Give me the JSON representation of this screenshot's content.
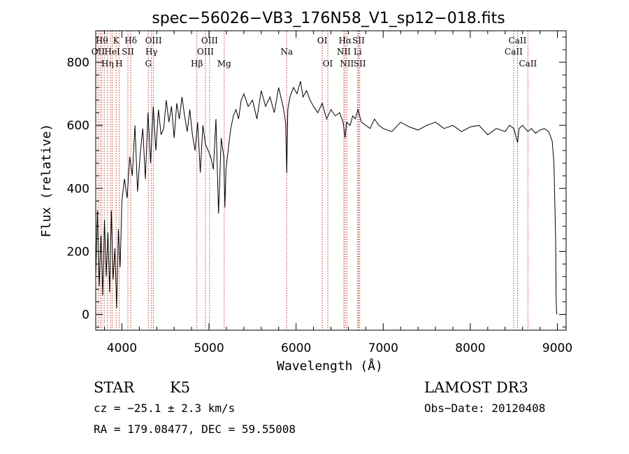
{
  "chart_data": {
    "type": "line",
    "title": "spec−56026−VB3_176N58_V1_sp12−018.fits",
    "xlabel": "Wavelength (Å)",
    "ylabel": "Flux (relative)",
    "xlim": [
      3700,
      9100
    ],
    "ylim": [
      -50,
      900
    ],
    "xticks": [
      4000,
      5000,
      6000,
      7000,
      8000,
      9000
    ],
    "yticks": [
      0,
      200,
      400,
      600,
      800
    ],
    "xtick_labels": [
      "4000",
      "5000",
      "6000",
      "7000",
      "8000",
      "9000"
    ],
    "ytick_labels": [
      "0",
      "200",
      "400",
      "600",
      "800"
    ],
    "line_color": "#000000",
    "marker_color": "#c0392b",
    "series": [
      {
        "name": "flux",
        "x": [
          3700,
          3720,
          3740,
          3760,
          3780,
          3800,
          3820,
          3840,
          3860,
          3880,
          3900,
          3920,
          3940,
          3960,
          3980,
          4000,
          4030,
          4060,
          4090,
          4120,
          4150,
          4180,
          4210,
          4240,
          4270,
          4300,
          4330,
          4360,
          4390,
          4420,
          4450,
          4480,
          4510,
          4540,
          4570,
          4600,
          4630,
          4660,
          4690,
          4720,
          4750,
          4780,
          4810,
          4840,
          4870,
          4900,
          4930,
          4960,
          4990,
          5020,
          5050,
          5080,
          5110,
          5140,
          5170,
          5183,
          5195,
          5220,
          5250,
          5280,
          5310,
          5340,
          5370,
          5400,
          5450,
          5500,
          5550,
          5600,
          5650,
          5700,
          5750,
          5800,
          5850,
          5880,
          5893,
          5905,
          5930,
          5970,
          6010,
          6050,
          6080,
          6120,
          6160,
          6200,
          6250,
          6300,
          6350,
          6400,
          6450,
          6500,
          6540,
          6563,
          6580,
          6620,
          6650,
          6680,
          6710,
          6750,
          6800,
          6850,
          6900,
          6950,
          7000,
          7100,
          7200,
          7300,
          7400,
          7500,
          7600,
          7700,
          7800,
          7900,
          8000,
          8100,
          8200,
          8300,
          8400,
          8450,
          8500,
          8542,
          8560,
          8600,
          8662,
          8700,
          8750,
          8800,
          8850,
          8900,
          8940,
          8960,
          8980,
          8985,
          8990,
          8995
        ],
        "y": [
          120,
          330,
          90,
          250,
          60,
          300,
          120,
          260,
          70,
          330,
          110,
          210,
          20,
          270,
          150,
          360,
          430,
          370,
          500,
          440,
          600,
          390,
          510,
          590,
          430,
          640,
          480,
          660,
          520,
          650,
          570,
          590,
          680,
          610,
          660,
          560,
          670,
          620,
          690,
          630,
          580,
          650,
          570,
          520,
          610,
          450,
          600,
          540,
          520,
          500,
          460,
          620,
          320,
          560,
          500,
          340,
          460,
          520,
          590,
          630,
          650,
          620,
          680,
          700,
          660,
          680,
          620,
          710,
          660,
          690,
          640,
          720,
          660,
          610,
          450,
          650,
          690,
          720,
          700,
          740,
          690,
          710,
          680,
          660,
          640,
          670,
          620,
          650,
          630,
          640,
          610,
          560,
          610,
          600,
          630,
          620,
          650,
          610,
          600,
          590,
          620,
          600,
          590,
          580,
          610,
          595,
          585,
          600,
          610,
          590,
          600,
          580,
          595,
          600,
          570,
          590,
          580,
          600,
          590,
          545,
          590,
          600,
          580,
          590,
          575,
          585,
          590,
          580,
          550,
          480,
          240,
          60,
          10,
          0
        ]
      }
    ],
    "line_marks": [
      {
        "wave": 3727,
        "label": "OII",
        "row": 2
      },
      {
        "wave": 3750,
        "label": "",
        "row": 0
      },
      {
        "wave": 3770,
        "label": "Hθ",
        "row": 1
      },
      {
        "wave": 3798,
        "label": "",
        "row": 0
      },
      {
        "wave": 3835,
        "label": "Hη",
        "row": 3
      },
      {
        "wave": 3869,
        "label": "",
        "row": 0
      },
      {
        "wave": 3889,
        "label": "HeI",
        "row": 2
      },
      {
        "wave": 3934,
        "label": "K",
        "row": 1
      },
      {
        "wave": 3968,
        "label": "H",
        "row": 3
      },
      {
        "wave": 4069,
        "label": "SII",
        "row": 2
      },
      {
        "wave": 4102,
        "label": "Hδ",
        "row": 1
      },
      {
        "wave": 4304,
        "label": "G",
        "row": 3
      },
      {
        "wave": 4340,
        "label": "Hγ",
        "row": 2
      },
      {
        "wave": 4363,
        "label": "OIII",
        "row": 1
      },
      {
        "wave": 4861,
        "label": "Hβ",
        "row": 3
      },
      {
        "wave": 4959,
        "label": "OIII",
        "row": 2
      },
      {
        "wave": 5007,
        "label": "OIII",
        "row": 1
      },
      {
        "wave": 5175,
        "label": "Mg",
        "row": 3
      },
      {
        "wave": 5893,
        "label": "Na",
        "row": 2
      },
      {
        "wave": 6300,
        "label": "OI",
        "row": 1
      },
      {
        "wave": 6364,
        "label": "OI",
        "row": 3
      },
      {
        "wave": 6548,
        "label": "NII",
        "row": 2
      },
      {
        "wave": 6563,
        "label": "Hα",
        "row": 1
      },
      {
        "wave": 6583,
        "label": "NII",
        "row": 3
      },
      {
        "wave": 6707,
        "label": "Li",
        "row": 2
      },
      {
        "wave": 6717,
        "label": "SII",
        "row": 1
      },
      {
        "wave": 6731,
        "label": "SII",
        "row": 3
      },
      {
        "wave": 8498,
        "label": "CaII",
        "row": 2
      },
      {
        "wave": 8542,
        "label": "CaII",
        "row": 1
      },
      {
        "wave": 8662,
        "label": "CaII",
        "row": 3
      }
    ]
  },
  "info": {
    "object_class": "STAR",
    "subclass": "K5",
    "survey": "LAMOST DR3",
    "redshift": "cz = −25.1 ± 2.3 km/s",
    "obs_date": "Obs−Date: 20120408",
    "coords": "RA = 179.08477, DEC =  59.55008"
  }
}
